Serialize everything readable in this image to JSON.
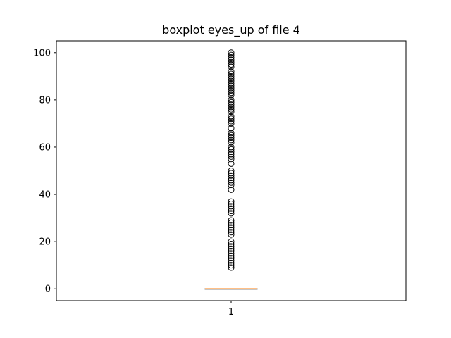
{
  "chart_data": {
    "type": "boxplot",
    "title": "boxplot eyes_up of file 4",
    "xlabel": "",
    "ylabel": "",
    "categories": [
      "1"
    ],
    "ylim": [
      -5,
      105
    ],
    "yticks": [
      0,
      20,
      40,
      60,
      80,
      100
    ],
    "grid": false,
    "box": {
      "min": 0,
      "q1": 0,
      "median": 0,
      "q3": 0,
      "max": 0
    },
    "outliers": [
      9,
      10,
      11,
      12,
      13,
      14,
      15,
      16,
      17,
      18,
      19,
      20,
      23,
      24,
      25,
      26,
      27,
      28,
      29,
      32,
      33,
      34,
      35,
      36,
      37,
      42,
      44,
      45,
      46,
      47,
      48,
      49,
      50,
      53,
      55,
      56,
      57,
      58,
      59,
      60,
      62,
      63,
      64,
      65,
      66,
      68,
      70,
      71,
      72,
      73,
      75,
      76,
      77,
      78,
      79,
      80,
      82,
      83,
      84,
      85,
      86,
      87,
      88,
      89,
      90,
      91,
      92,
      94,
      95,
      96,
      97,
      98,
      99,
      100
    ],
    "colors": {
      "median": "#ff7f0e",
      "box": "#000000",
      "outlier": "#000000"
    }
  }
}
